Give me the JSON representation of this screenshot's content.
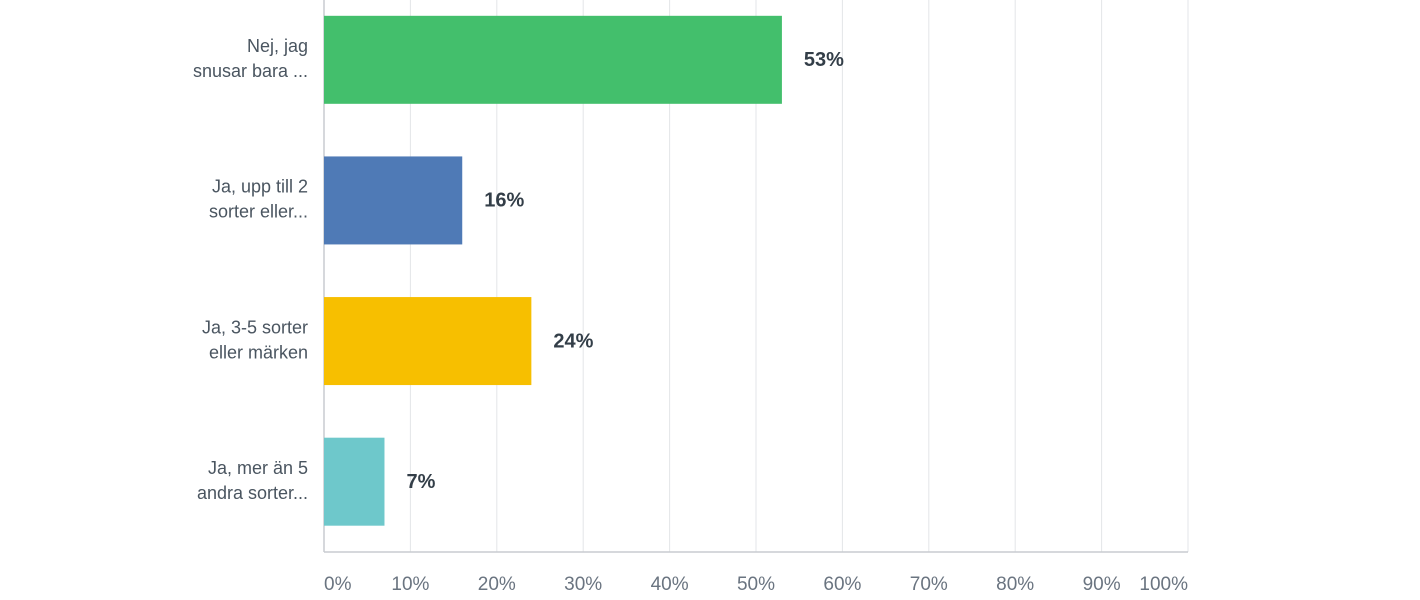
{
  "chart_data": {
    "type": "bar",
    "orientation": "horizontal",
    "categories": [
      [
        "Nej, jag",
        "snusar bara ..."
      ],
      [
        "Ja, upp till 2",
        "sorter eller..."
      ],
      [
        "Ja, 3-5 sorter",
        "eller märken"
      ],
      [
        "Ja, mer än 5",
        "andra sorter..."
      ]
    ],
    "values": [
      53,
      16,
      24,
      7
    ],
    "value_labels": [
      "53%",
      "16%",
      "24%",
      "7%"
    ],
    "colors": [
      "#43bf6c",
      "#4f7ab6",
      "#f7bf00",
      "#6ec8cb"
    ],
    "xlim": [
      0,
      100
    ],
    "xticks": [
      {
        "value": 0,
        "label": "0%"
      },
      {
        "value": 10,
        "label": "10%"
      },
      {
        "value": 20,
        "label": "20%"
      },
      {
        "value": 30,
        "label": "30%"
      },
      {
        "value": 40,
        "label": "40%"
      },
      {
        "value": 50,
        "label": "50%"
      },
      {
        "value": 60,
        "label": "60%"
      },
      {
        "value": 70,
        "label": "70%"
      },
      {
        "value": 80,
        "label": "80%"
      },
      {
        "value": 90,
        "label": "90%"
      },
      {
        "value": 100,
        "label": "100%"
      }
    ],
    "grid": true
  }
}
